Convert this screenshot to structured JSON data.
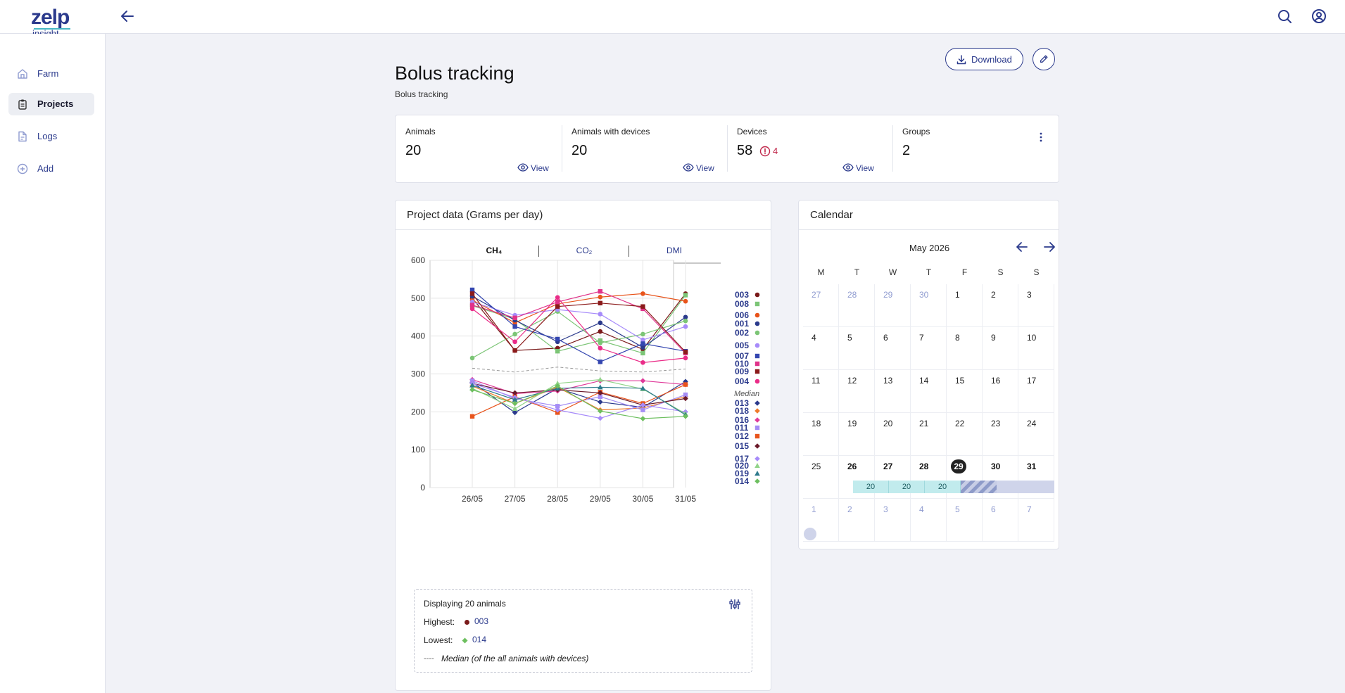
{
  "app": {
    "logo_text": "zelp",
    "logo_sub": "insight"
  },
  "sidebar": {
    "items": [
      {
        "label": "Farm",
        "icon": "home-icon"
      },
      {
        "label": "Projects",
        "icon": "clipboard-icon"
      },
      {
        "label": "Logs",
        "icon": "file-icon"
      },
      {
        "label": "Add",
        "icon": "plus-circle-icon"
      }
    ]
  },
  "header": {
    "title": "Bolus tracking",
    "subtitle": "Bolus tracking",
    "download_label": "Download"
  },
  "stats": [
    {
      "label": "Animals",
      "value": "20",
      "view": "View"
    },
    {
      "label": "Animals with devices",
      "value": "20",
      "view": "View"
    },
    {
      "label": "Devices",
      "value": "58",
      "alert": "4",
      "view": "View"
    },
    {
      "label": "Groups",
      "value": "2"
    }
  ],
  "project_panel": {
    "title": "Project data (Grams per day)",
    "tabs": [
      "CH₄",
      "CO₂",
      "DMI"
    ],
    "active_tab": 0,
    "summary": {
      "displaying": "Displaying 20 animals",
      "highest_label": "Highest:",
      "highest_id": "003",
      "lowest_label": "Lowest:",
      "lowest_id": "014",
      "median_dash": "----",
      "median_label": "Median (of the all animals with devices)"
    }
  },
  "colors": {
    "accent": "#2b3a8c",
    "tab_active": "#5ab6cf",
    "event": "#c1ebed",
    "alert": "#c0264a"
  },
  "chart_data": {
    "type": "line",
    "x": [
      "26/05",
      "27/05",
      "28/05",
      "29/05",
      "30/05",
      "31/05"
    ],
    "ylim": [
      0,
      600
    ],
    "yticks": [
      0,
      100,
      200,
      300,
      400,
      500,
      600
    ],
    "grid": true,
    "legend_position": "right",
    "median_label": "Median",
    "median": [
      315,
      305,
      318,
      308,
      305,
      313
    ],
    "series": [
      {
        "name": "003",
        "color": "#7a1a1a",
        "marker": "circle",
        "values": [
          500,
          362,
          368,
          412,
          365,
          512
        ]
      },
      {
        "name": "008",
        "color": "#7cc576",
        "marker": "square",
        "values": [
          480,
          445,
          360,
          388,
          355,
          508
        ]
      },
      {
        "name": "006",
        "color": "#e8541b",
        "marker": "circle",
        "values": [
          495,
          435,
          485,
          503,
          512,
          492
        ]
      },
      {
        "name": "001",
        "color": "#2b3a8c",
        "marker": "circle",
        "values": [
          505,
          442,
          385,
          435,
          370,
          450
        ]
      },
      {
        "name": "002",
        "color": "#7cc576",
        "marker": "circle",
        "values": [
          342,
          405,
          465,
          382,
          405,
          440
        ]
      },
      {
        "name": "005",
        "color": "#a78bfa",
        "marker": "circle",
        "values": [
          490,
          455,
          470,
          458,
          390,
          425
        ]
      },
      {
        "name": "007",
        "color": "#3446b0",
        "marker": "square",
        "values": [
          522,
          425,
          392,
          332,
          380,
          360
        ]
      },
      {
        "name": "010",
        "color": "#e0338a",
        "marker": "square",
        "values": [
          482,
          448,
          490,
          518,
          472,
          355
        ]
      },
      {
        "name": "009",
        "color": "#8b1a1a",
        "marker": "square",
        "values": [
          512,
          362,
          478,
          487,
          478,
          358
        ]
      },
      {
        "name": "004",
        "color": "#ea2c88",
        "marker": "circle",
        "values": [
          472,
          385,
          502,
          368,
          330,
          342
        ]
      },
      {
        "name": "013",
        "color": "#2b3a8c",
        "marker": "diamond",
        "values": [
          278,
          198,
          262,
          226,
          212,
          280
        ]
      },
      {
        "name": "018",
        "color": "#f07a2a",
        "marker": "diamond",
        "values": [
          268,
          222,
          265,
          205,
          210,
          240
        ]
      },
      {
        "name": "016",
        "color": "#e03a9a",
        "marker": "diamond",
        "values": [
          285,
          248,
          255,
          282,
          282,
          272
        ]
      },
      {
        "name": "011",
        "color": "#a58df5",
        "marker": "square",
        "values": [
          282,
          235,
          215,
          240,
          205,
          245
        ]
      },
      {
        "name": "012",
        "color": "#e8541b",
        "marker": "square",
        "values": [
          188,
          240,
          198,
          252,
          222,
          272
        ]
      },
      {
        "name": "015",
        "color": "#6b1a2a",
        "marker": "diamond",
        "values": [
          275,
          250,
          258,
          250,
          218,
          235
        ]
      },
      {
        "name": "017",
        "color": "#a78bfa",
        "marker": "diamond",
        "values": [
          275,
          238,
          205,
          183,
          218,
          200
        ]
      },
      {
        "name": "020",
        "color": "#92d48a",
        "marker": "triangle",
        "values": [
          262,
          208,
          275,
          285,
          260,
          195
        ]
      },
      {
        "name": "019",
        "color": "#2e7a8c",
        "marker": "triangle",
        "values": [
          270,
          232,
          262,
          265,
          262,
          192
        ]
      },
      {
        "name": "014",
        "color": "#6dbf5f",
        "marker": "diamond",
        "values": [
          258,
          222,
          268,
          202,
          182,
          188
        ]
      }
    ]
  },
  "calendar": {
    "title": "Calendar",
    "month": "May 2026",
    "dow": [
      "M",
      "T",
      "W",
      "T",
      "F",
      "S",
      "S"
    ],
    "weeks": [
      [
        "27",
        "28",
        "29",
        "30",
        "1",
        "2",
        "3"
      ],
      [
        "4",
        "5",
        "6",
        "7",
        "8",
        "9",
        "10"
      ],
      [
        "11",
        "12",
        "13",
        "14",
        "15",
        "16",
        "17"
      ],
      [
        "18",
        "19",
        "20",
        "21",
        "22",
        "23",
        "24"
      ],
      [
        "25",
        "26",
        "27",
        "28",
        "29",
        "30",
        "31"
      ],
      [
        "1",
        "2",
        "3",
        "4",
        "5",
        "6",
        "7"
      ]
    ],
    "today": "29",
    "event_counts": [
      "20",
      "20",
      "20"
    ]
  }
}
